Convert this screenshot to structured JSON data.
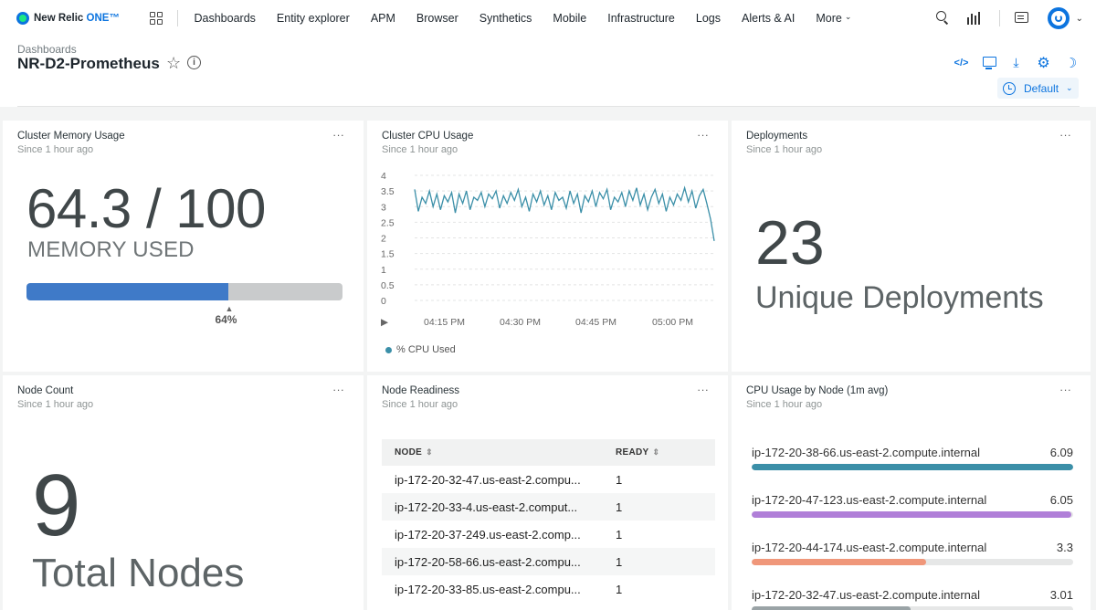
{
  "app": {
    "brand": "New Relic",
    "brand_suffix": "ONE™"
  },
  "nav": {
    "items": [
      "Dashboards",
      "Entity explorer",
      "APM",
      "Browser",
      "Synthetics",
      "Mobile",
      "Infrastructure",
      "Logs",
      "Alerts & AI",
      "More"
    ]
  },
  "header": {
    "breadcrumb": "Dashboards",
    "title": "NR-D2-Prometheus",
    "time_picker": "Default"
  },
  "widgets": {
    "memory": {
      "title": "Cluster Memory Usage",
      "subtitle": "Since 1 hour ago",
      "value": "64.3 / 100",
      "label": "MEMORY USED",
      "percent": 64,
      "percent_label": "64%"
    },
    "cpu": {
      "title": "Cluster CPU Usage",
      "subtitle": "Since 1 hour ago",
      "legend": "% CPU Used"
    },
    "deployments": {
      "title": "Deployments",
      "subtitle": "Since 1 hour ago",
      "value": "23",
      "label": "Unique Deployments"
    },
    "node_count": {
      "title": "Node Count",
      "subtitle": "Since 1 hour ago",
      "value": "9",
      "label": "Total Nodes"
    },
    "readiness": {
      "title": "Node Readiness",
      "subtitle": "Since 1 hour ago",
      "columns": [
        "NODE",
        "READY"
      ],
      "rows": [
        {
          "node": "ip-172-20-32-47.us-east-2.compu...",
          "ready": "1"
        },
        {
          "node": "ip-172-20-33-4.us-east-2.comput...",
          "ready": "1"
        },
        {
          "node": "ip-172-20-37-249.us-east-2.comp...",
          "ready": "1"
        },
        {
          "node": "ip-172-20-58-66.us-east-2.compu...",
          "ready": "1"
        },
        {
          "node": "ip-172-20-33-85.us-east-2.compu...",
          "ready": "1"
        }
      ]
    },
    "cpu_by_node": {
      "title": "CPU Usage by Node (1m avg)",
      "subtitle": "Since 1 hour ago",
      "rows": [
        {
          "name": "ip-172-20-38-66.us-east-2.compute.internal",
          "value": "6.09",
          "fraction": 1.0,
          "color": "#3b8fa8"
        },
        {
          "name": "ip-172-20-47-123.us-east-2.compute.internal",
          "value": "6.05",
          "fraction": 0.994,
          "color": "#b07fd8"
        },
        {
          "name": "ip-172-20-44-174.us-east-2.compute.internal",
          "value": "3.3",
          "fraction": 0.542,
          "color": "#f0977a"
        },
        {
          "name": "ip-172-20-32-47.us-east-2.compute.internal",
          "value": "3.01",
          "fraction": 0.494,
          "color": "#9aa3a6"
        }
      ]
    }
  },
  "chart_data": {
    "type": "line",
    "title": "Cluster CPU Usage",
    "xlabel": "",
    "ylabel": "",
    "ylim": [
      0,
      4
    ],
    "yticks": [
      "0",
      "0.5",
      "1",
      "1.5",
      "2",
      "2.5",
      "3",
      "3.5",
      "4"
    ],
    "xticks": [
      "▶︎",
      "04:15 PM",
      "04:30 PM",
      "04:45 PM",
      "05:00 PM"
    ],
    "grid": true,
    "legend_position": "bottom-left",
    "series": [
      {
        "name": "% CPU Used",
        "color": "#3b8fa8",
        "values": [
          3.55,
          2.85,
          3.3,
          3.1,
          3.5,
          3.0,
          3.4,
          2.9,
          3.35,
          3.15,
          3.45,
          2.8,
          3.4,
          3.1,
          3.5,
          2.9,
          3.3,
          3.2,
          3.45,
          3.0,
          3.4,
          3.25,
          3.5,
          2.95,
          3.35,
          3.1,
          3.45,
          3.2,
          3.55,
          3.0,
          3.3,
          2.85,
          3.4,
          3.15,
          3.5,
          3.05,
          3.35,
          2.9,
          3.45,
          3.2,
          3.3,
          2.95,
          3.5,
          3.1,
          3.4,
          2.8,
          3.35,
          3.15,
          3.5,
          3.0,
          3.45,
          3.25,
          3.55,
          2.9,
          3.3,
          3.15,
          3.45,
          3.0,
          3.5,
          3.2,
          3.6,
          3.05,
          3.4,
          2.9,
          3.3,
          3.55,
          3.1,
          3.4,
          2.85,
          3.3,
          3.05,
          3.4,
          3.2,
          3.6,
          3.15,
          3.5,
          2.95,
          3.35,
          3.55,
          3.1,
          2.6,
          1.9
        ]
      }
    ]
  }
}
